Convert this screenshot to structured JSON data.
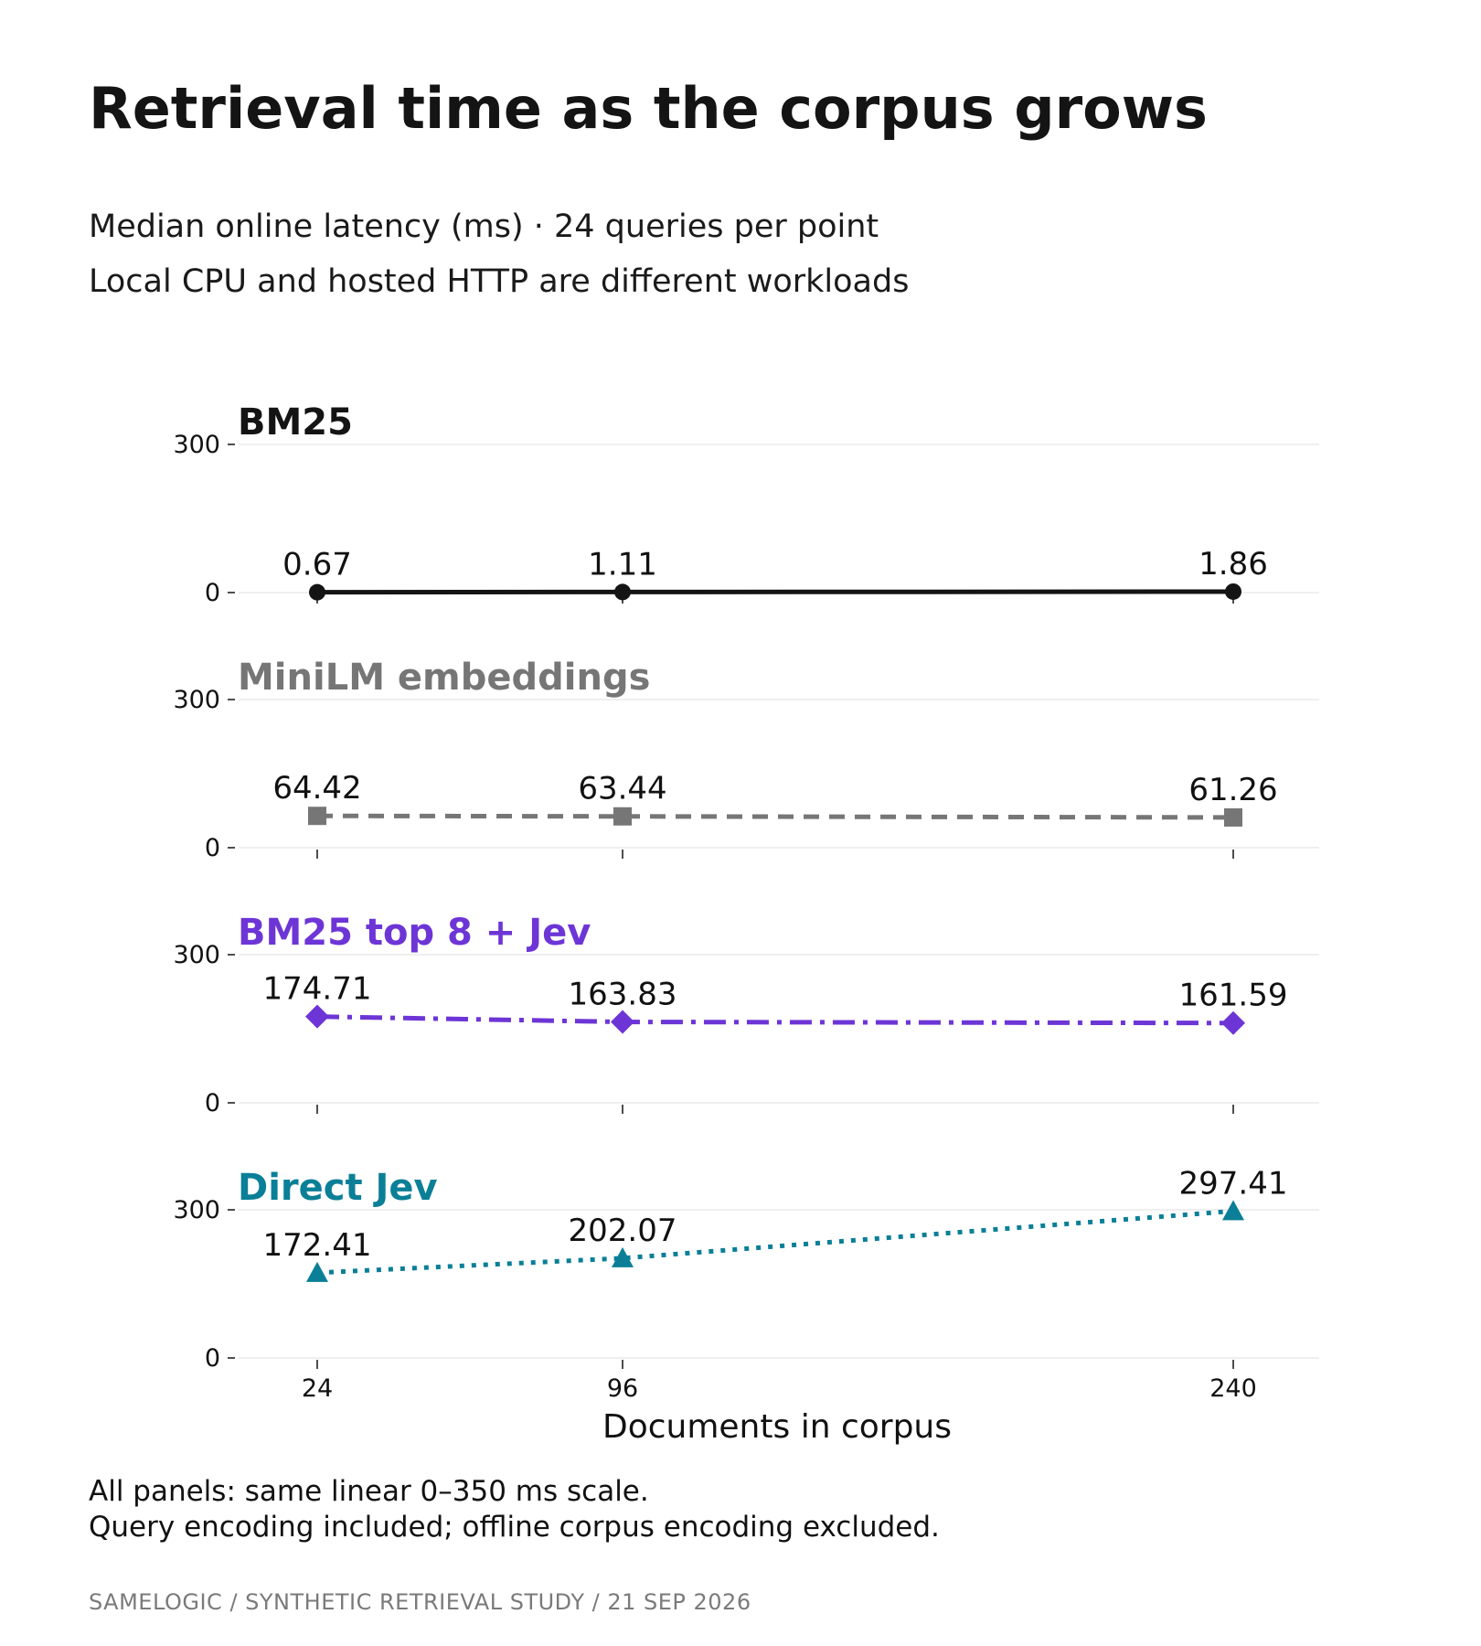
{
  "header": {
    "title": "Retrieval time as the corpus grows",
    "subtitle_line1": "Median online latency (ms) · 24 queries per point",
    "subtitle_line2": "Local CPU and hosted HTTP are different workloads"
  },
  "chart_data": {
    "type": "line",
    "layout": "small-multiples",
    "xlabel": "Documents in corpus",
    "x": [
      24,
      96,
      240
    ],
    "x_ticks": [
      "24",
      "96",
      "240"
    ],
    "ylim": [
      0,
      350
    ],
    "y_ticks": [
      0,
      300
    ],
    "grid": true,
    "series": [
      {
        "name": "BM25",
        "values": [
          0.67,
          1.11,
          1.86
        ],
        "labels": [
          "0.67",
          "1.11",
          "1.86"
        ],
        "color": "#141414",
        "line_style": "solid",
        "marker": "circle"
      },
      {
        "name": "MiniLM embeddings",
        "values": [
          64.42,
          63.44,
          61.26
        ],
        "labels": [
          "64.42",
          "63.44",
          "61.26"
        ],
        "color": "#767676",
        "line_style": "dashed",
        "marker": "square"
      },
      {
        "name": "BM25 top 8 + Jev",
        "values": [
          174.71,
          163.83,
          161.59
        ],
        "labels": [
          "174.71",
          "163.83",
          "161.59"
        ],
        "color": "#6d35d6",
        "line_style": "dash-dot",
        "marker": "diamond"
      },
      {
        "name": "Direct Jev",
        "values": [
          172.41,
          202.07,
          297.41
        ],
        "labels": [
          "172.41",
          "202.07",
          "297.41"
        ],
        "color": "#0a7f97",
        "line_style": "dotted",
        "marker": "triangle"
      }
    ]
  },
  "notes": {
    "line1": "All panels: same linear 0–350 ms scale.",
    "line2": "Query encoding included; offline corpus encoding excluded."
  },
  "footer": "SAMELOGIC  /  SYNTHETIC RETRIEVAL STUDY  /  21 SEP 2026"
}
